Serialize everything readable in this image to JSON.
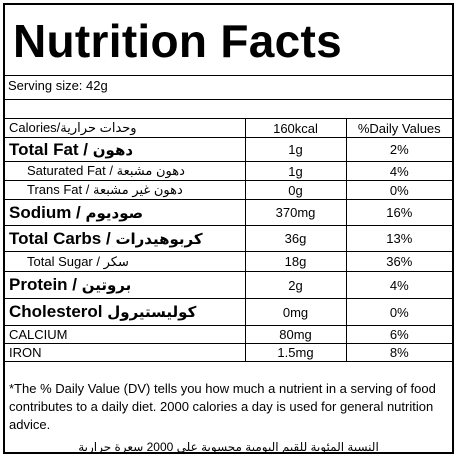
{
  "title": "Nutrition Facts",
  "serving": "Serving size:  42g",
  "rows": [
    {
      "label": "Calories/وحدات حرارية",
      "value": "160kcal",
      "percent": "%Daily Values"
    },
    {
      "label": "Total Fat / ",
      "arabic": "دهون",
      "value": "1g",
      "percent": "2%"
    },
    {
      "label": "Saturated Fat / ",
      "arabic": "دهون مشبعة",
      "value": "1g",
      "percent": "4%"
    },
    {
      "label": "Trans Fat / ",
      "arabic": "دهون غير مشبعة",
      "value": "0g",
      "percent": "0%"
    },
    {
      "label": "Sodium / ",
      "arabic": "صوديوم",
      "value": "370mg",
      "percent": "16%"
    },
    {
      "label": "Total Carbs / ",
      "arabic": "كربوهيدرات",
      "value": "36g",
      "percent": "13%"
    },
    {
      "label": "Total Sugar / ",
      "arabic": "سكر",
      "value": "18g",
      "percent": "36%"
    },
    {
      "label": "Protein / ",
      "arabic": "بروتين",
      "value": "2g",
      "percent": "4%"
    },
    {
      "label": "Cholesterol ",
      "arabic": "كوليستيرول",
      "value": "0mg",
      "percent": "0%"
    },
    {
      "label": "CALCIUM",
      "value": "80mg",
      "percent": "6%"
    },
    {
      "label": "IRON",
      "value": "1.5mg",
      "percent": "8%"
    }
  ],
  "footnote": "*The % Daily Value (DV) tells you how much a nutrient in a serving of food contributes to a daily diet. 2000 calories a day is used for general nutrition advice.",
  "footnote_ar": "النسبة المئوية للقيم اليومية محسوبة على 2000 سعرة حرارية"
}
